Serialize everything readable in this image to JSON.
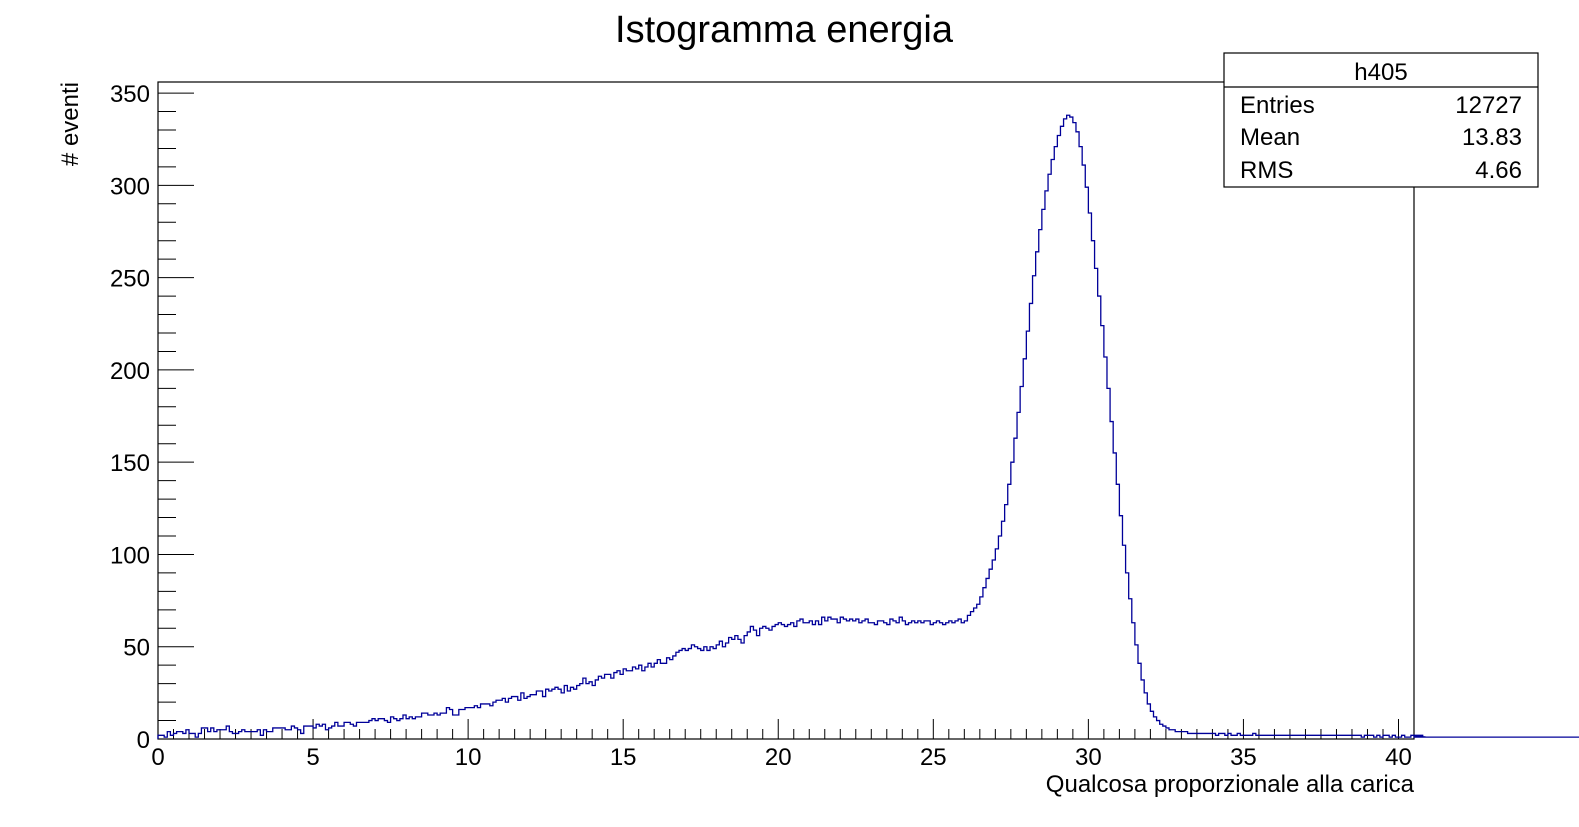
{
  "chart_data": {
    "type": "histogram",
    "title": "Istogramma energia",
    "xlabel": "Qualcosa proporzionale alla carica",
    "ylabel": "# eventi",
    "xlim": [
      0,
      40.5
    ],
    "ylim": [
      0,
      356
    ],
    "x_ticks": [
      "0",
      "5",
      "10",
      "15",
      "20",
      "25",
      "30",
      "35",
      "40"
    ],
    "y_ticks": [
      "0",
      "50",
      "100",
      "150",
      "200",
      "250",
      "300",
      "350"
    ],
    "bin_width": 0.1,
    "line_color": "#000099",
    "stats_box": {
      "name": "h405",
      "rows": [
        {
          "label": "Entries",
          "value": "12727"
        },
        {
          "label": "Mean",
          "value": "13.83"
        },
        {
          "label": "RMS",
          "value": "4.66"
        }
      ]
    },
    "bins_start": 0,
    "counts": [
      2,
      2,
      1,
      4,
      2,
      3,
      4,
      4,
      3,
      5,
      3,
      3,
      1,
      3,
      6,
      6,
      4,
      6,
      4,
      5,
      5,
      5,
      7,
      4,
      3,
      3,
      4,
      5,
      4,
      4,
      4,
      4,
      5,
      2,
      5,
      4,
      4,
      6,
      6,
      6,
      6,
      5,
      5,
      7,
      6,
      5,
      3,
      7,
      7,
      7,
      6,
      8,
      7,
      8,
      5,
      6,
      7,
      9,
      7,
      7,
      9,
      9,
      8,
      7,
      9,
      9,
      9,
      9,
      10,
      11,
      10,
      11,
      11,
      10,
      9,
      12,
      11,
      10,
      11,
      13,
      11,
      12,
      11,
      12,
      12,
      14,
      14,
      13,
      13,
      14,
      13,
      14,
      14,
      17,
      16,
      13,
      13,
      16,
      16,
      17,
      17,
      17,
      18,
      17,
      19,
      19,
      19,
      18,
      20,
      21,
      21,
      22,
      20,
      22,
      23,
      23,
      21,
      25,
      22,
      23,
      24,
      24,
      26,
      26,
      23,
      27,
      26,
      27,
      28,
      27,
      25,
      29,
      26,
      28,
      27,
      29,
      30,
      33,
      30,
      31,
      29,
      32,
      34,
      33,
      35,
      35,
      33,
      36,
      37,
      35,
      38,
      37,
      37,
      39,
      38,
      40,
      37,
      39,
      41,
      39,
      41,
      43,
      41,
      41,
      44,
      43,
      45,
      47,
      48,
      49,
      48,
      49,
      51,
      50,
      49,
      48,
      50,
      48,
      50,
      49,
      51,
      53,
      50,
      52,
      55,
      54,
      56,
      54,
      52,
      56,
      58,
      61,
      59,
      56,
      60,
      61,
      60,
      59,
      61,
      62,
      63,
      62,
      61,
      62,
      63,
      61,
      64,
      65,
      63,
      63,
      64,
      62,
      64,
      62,
      66,
      64,
      66,
      65,
      65,
      63,
      66,
      65,
      64,
      65,
      64,
      65,
      63,
      64,
      65,
      63,
      63,
      62,
      64,
      64,
      63,
      62,
      65,
      64,
      63,
      66,
      64,
      62,
      63,
      64,
      63,
      64,
      63,
      64,
      64,
      62,
      63,
      64,
      63,
      62,
      63,
      64,
      63,
      64,
      65,
      63,
      64,
      67,
      69,
      71,
      73,
      77,
      82,
      87,
      92,
      97,
      103,
      110,
      118,
      127,
      138,
      150,
      163,
      177,
      191,
      206,
      221,
      236,
      251,
      264,
      276,
      287,
      297,
      306,
      314,
      321,
      327,
      332,
      336,
      338,
      337,
      334,
      329,
      321,
      311,
      299,
      285,
      270,
      255,
      240,
      224,
      207,
      190,
      172,
      155,
      138,
      121,
      105,
      90,
      76,
      63,
      51,
      41,
      32,
      25,
      19,
      15,
      12,
      10,
      8,
      7,
      6,
      5,
      5,
      4,
      4,
      4,
      4,
      3,
      3,
      3,
      3,
      3,
      3,
      3,
      3,
      3,
      2,
      3,
      3,
      2,
      3,
      2,
      2,
      3,
      2,
      2,
      2,
      2,
      3,
      2,
      2,
      2,
      2,
      2,
      2,
      2,
      2,
      2,
      2,
      2,
      2,
      2,
      2,
      2,
      2,
      2,
      2,
      2,
      2,
      2,
      2,
      2,
      2,
      2,
      2,
      2,
      2,
      2,
      2,
      2,
      2,
      2,
      2,
      1,
      2,
      2,
      2,
      1,
      2,
      1,
      2,
      2,
      1,
      2,
      1,
      1,
      2,
      1,
      1,
      2,
      1,
      1,
      1,
      2,
      1,
      1,
      1,
      1,
      1,
      1,
      1,
      1,
      1,
      1,
      1,
      1,
      1,
      1,
      1,
      1,
      1,
      1,
      1,
      1,
      1,
      1,
      1,
      1,
      1,
      1,
      1,
      1,
      1,
      1,
      1,
      1,
      1,
      1,
      1,
      1,
      1,
      1,
      1,
      1,
      1,
      1,
      1,
      1,
      1,
      1,
      1,
      1,
      1,
      1,
      1,
      1,
      1,
      1,
      1,
      1,
      1,
      1,
      1,
      1,
      1,
      1,
      1,
      1,
      1,
      1,
      1,
      1,
      1,
      1,
      1,
      1,
      1,
      1,
      1,
      1,
      1,
      1,
      1,
      1,
      1,
      1,
      1,
      1,
      1,
      1,
      1,
      1,
      1,
      1,
      1,
      1,
      1,
      1,
      1,
      1,
      1,
      1,
      1,
      1,
      1,
      1,
      1,
      1,
      1,
      1,
      1,
      1,
      1,
      1,
      1,
      1,
      1,
      1,
      1,
      1,
      1,
      1,
      1,
      1,
      1,
      1,
      1,
      1,
      1,
      1,
      1,
      1,
      1,
      1,
      1,
      1,
      1,
      1,
      1
    ]
  }
}
